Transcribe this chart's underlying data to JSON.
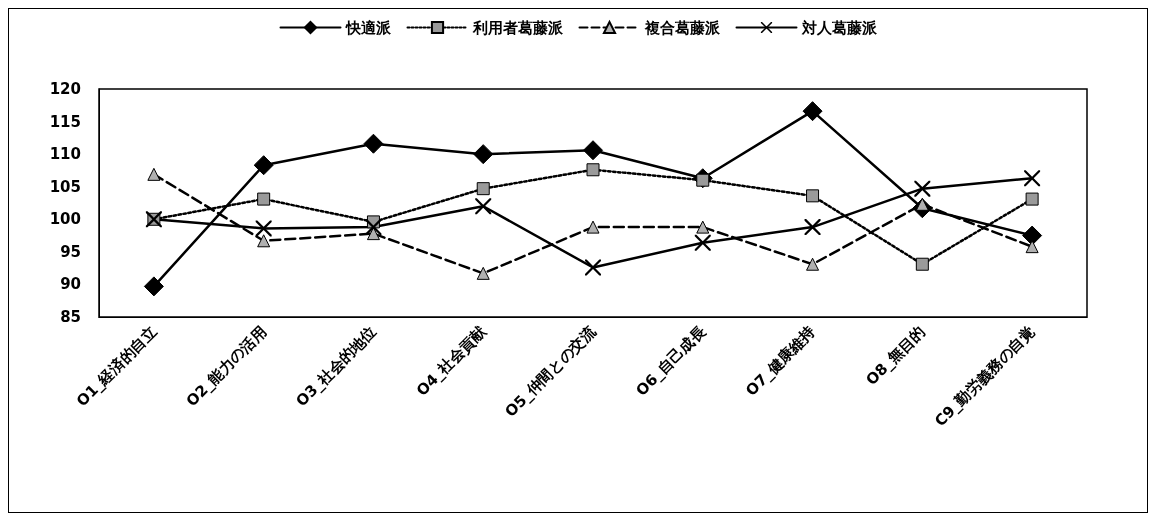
{
  "chart_data": {
    "type": "line",
    "categories": [
      "O1_経済的自立",
      "O2_能力の活用",
      "O3_社会的地位",
      "O4_社会貢献",
      "O5_仲間との交流",
      "O6_自己成長",
      "O7_健康維持",
      "O8_無目的",
      "C9_勤労義務の自覚"
    ],
    "series": [
      {
        "name": "快適派",
        "color": "#000000",
        "marker": "diamond",
        "line_style": "solid",
        "values": [
          89.7,
          108.3,
          111.6,
          110,
          110.6,
          106.3,
          116.6,
          101.7,
          97.5
        ]
      },
      {
        "name": "利用者葛藤派",
        "color": "#000000",
        "marker": "square",
        "line_style": "dotted",
        "values": [
          100,
          103.1,
          99.6,
          104.7,
          107.6,
          106,
          103.6,
          93.1,
          103.1
        ]
      },
      {
        "name": "複合葛藤派",
        "color": "#000000",
        "marker": "triangle",
        "line_style": "dashed",
        "values": [
          106.9,
          96.7,
          97.8,
          91.7,
          98.8,
          98.8,
          93.1,
          102.3,
          95.8
        ]
      },
      {
        "name": "対人葛藤派",
        "color": "#000000",
        "marker": "cross",
        "line_style": "solid",
        "values": [
          100,
          98.6,
          98.8,
          102,
          92.6,
          96.4,
          98.8,
          104.7,
          106.3
        ]
      }
    ],
    "ylim": [
      85,
      120
    ],
    "yticks": [
      85,
      90,
      95,
      100,
      105,
      110,
      115,
      120
    ],
    "grid": false,
    "legend": "top"
  }
}
